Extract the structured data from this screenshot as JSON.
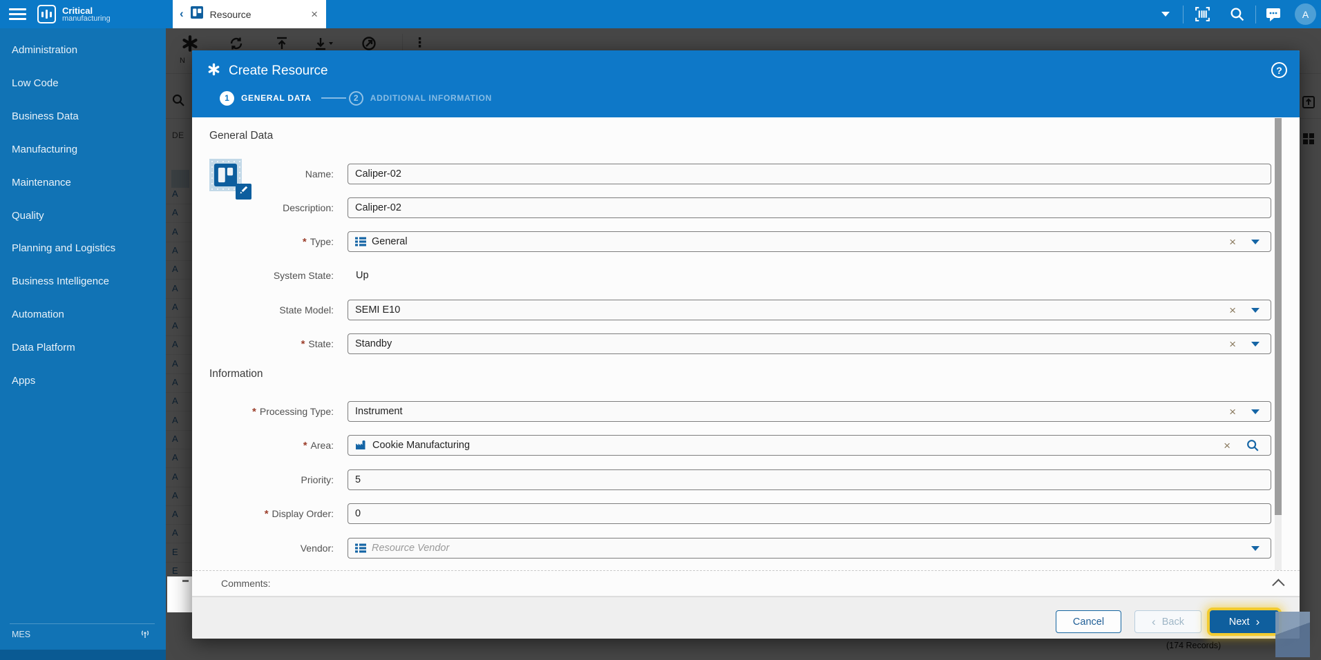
{
  "topbar": {
    "tab": {
      "label": "Resource"
    },
    "avatar_initial": "A"
  },
  "brand": {
    "line1": "Critical",
    "line2": "manufacturing"
  },
  "sidebar": {
    "items": [
      "Administration",
      "Low Code",
      "Business Data",
      "Manufacturing",
      "Maintenance",
      "Quality",
      "Planning and Logistics",
      "Business Intelligence",
      "Automation",
      "Data Platform",
      "Apps"
    ],
    "footer_label": "MES"
  },
  "background_page": {
    "toolbar_label_new": "N",
    "filter_header": "DE",
    "row_letters": [
      "A",
      "A",
      "A",
      "A",
      "A",
      "A",
      "A",
      "A",
      "A",
      "A",
      "A",
      "A",
      "A",
      "A",
      "A",
      "A",
      "A",
      "A",
      "A",
      "E",
      "E"
    ],
    "records_count": "(174 Records)"
  },
  "modal": {
    "title": "Create Resource",
    "steps": [
      {
        "number": "1",
        "label": "GENERAL DATA",
        "active": true
      },
      {
        "number": "2",
        "label": "ADDITIONAL INFORMATION",
        "active": false
      }
    ],
    "sections": {
      "general": "General Data",
      "information": "Information"
    },
    "fields": [
      {
        "label": "Name:",
        "value": "Caliper-02",
        "required": false,
        "control": "text"
      },
      {
        "label": "Description:",
        "value": "Caliper-02",
        "required": false,
        "control": "text"
      },
      {
        "label": "Type:",
        "value": "General",
        "required": true,
        "control": "dropdown",
        "icon": "list-icon",
        "actions": [
          "clear",
          "caret"
        ]
      },
      {
        "label": "System State:",
        "value": "Up",
        "required": false,
        "control": "readonly"
      },
      {
        "label": "State Model:",
        "value": "SEMI E10",
        "required": false,
        "control": "dropdown",
        "actions": [
          "clear",
          "caret"
        ]
      },
      {
        "label": "State:",
        "value": "Standby",
        "required": true,
        "control": "dropdown",
        "actions": [
          "clear",
          "caret"
        ]
      },
      {
        "label": "Processing Type:",
        "value": "Instrument",
        "required": true,
        "control": "dropdown",
        "actions": [
          "clear",
          "caret"
        ]
      },
      {
        "label": "Area:",
        "value": "Cookie Manufacturing",
        "required": true,
        "control": "lookup",
        "icon": "factory-icon",
        "actions": [
          "clear",
          "search"
        ]
      },
      {
        "label": "Priority:",
        "value": "5",
        "required": false,
        "control": "text"
      },
      {
        "label": "Display Order:",
        "value": "0",
        "required": true,
        "control": "text"
      },
      {
        "label": "Vendor:",
        "value": "",
        "placeholder": "Resource Vendor",
        "required": false,
        "control": "dropdown",
        "icon": "list-icon",
        "actions": [
          "caret"
        ]
      }
    ],
    "comments_label": "Comments:",
    "buttons": {
      "cancel": "Cancel",
      "back": "Back",
      "next": "Next"
    }
  },
  "colors": {
    "topbar": "#0b79c7",
    "sidebar": "#1173b5",
    "modal_header": "#0e78c8",
    "accent": "#0f5f9e",
    "caret_blue": "#1565a5",
    "required": "#9c3f2c",
    "focus_ring": "#f2cb30"
  }
}
